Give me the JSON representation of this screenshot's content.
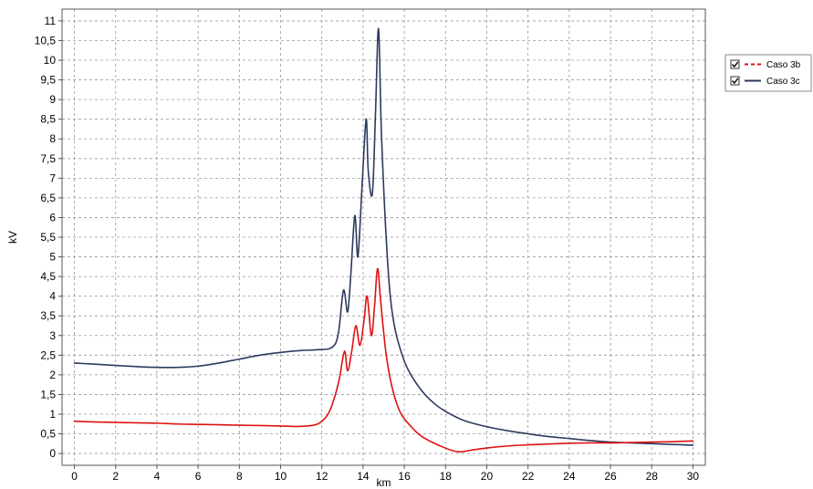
{
  "chart_data": {
    "type": "line",
    "title": "",
    "xlabel": "km",
    "ylabel": "kV",
    "xlim": [
      -0.6,
      30.6
    ],
    "ylim": [
      -0.3,
      11.3
    ],
    "xticks": [
      0,
      2,
      4,
      6,
      8,
      10,
      12,
      14,
      16,
      18,
      20,
      22,
      24,
      26,
      28,
      30
    ],
    "xtick_labels": [
      "0",
      "2",
      "4",
      "6",
      "8",
      "10",
      "12",
      "14",
      "16",
      "18",
      "20",
      "22",
      "24",
      "26",
      "28",
      "30"
    ],
    "yticks": [
      0,
      0.5,
      1,
      1.5,
      2,
      2.5,
      3,
      3.5,
      4,
      4.5,
      5,
      5.5,
      6,
      6.5,
      7,
      7.5,
      8,
      8.5,
      9,
      9.5,
      10,
      10.5,
      11
    ],
    "ytick_labels": [
      "0",
      "0,5",
      "1",
      "1,5",
      "2",
      "2,5",
      "3",
      "3,5",
      "4",
      "4,5",
      "5",
      "5,5",
      "6",
      "6,5",
      "7",
      "7,5",
      "8",
      "8,5",
      "9",
      "9,5",
      "10",
      "10,5",
      "11"
    ],
    "grid": true,
    "legend_position": "top-right, outside plot",
    "series": [
      {
        "name": "Caso 3b",
        "color": "#e01010",
        "legend_style": "dashed",
        "x": [
          0,
          1,
          2,
          3,
          4,
          5,
          6,
          7,
          8,
          9,
          10,
          11,
          11.8,
          12.3,
          12.6,
          12.85,
          13.1,
          13.25,
          13.45,
          13.65,
          13.85,
          14.05,
          14.2,
          14.4,
          14.55,
          14.7,
          14.85,
          15.1,
          15.4,
          15.8,
          16.3,
          16.8,
          17.3,
          17.8,
          18.3,
          18.7,
          19.2,
          20,
          21,
          22,
          23,
          24,
          25,
          26,
          27,
          28,
          29,
          30
        ],
        "y": [
          0.82,
          0.8,
          0.79,
          0.78,
          0.77,
          0.75,
          0.74,
          0.73,
          0.72,
          0.71,
          0.7,
          0.69,
          0.75,
          1.0,
          1.4,
          1.9,
          2.6,
          2.1,
          2.6,
          3.25,
          2.75,
          3.4,
          4.0,
          3.0,
          3.7,
          4.7,
          3.9,
          2.6,
          1.7,
          1.05,
          0.7,
          0.45,
          0.3,
          0.18,
          0.08,
          0.04,
          0.08,
          0.14,
          0.19,
          0.22,
          0.24,
          0.26,
          0.27,
          0.27,
          0.28,
          0.29,
          0.3,
          0.32
        ]
      },
      {
        "name": "Caso 3c",
        "color": "#2b3a5e",
        "legend_style": "solid",
        "x": [
          0,
          1,
          2,
          3,
          4,
          5,
          6,
          7,
          8,
          9,
          10,
          11,
          11.8,
          12.5,
          12.8,
          13.05,
          13.25,
          13.4,
          13.6,
          13.75,
          13.95,
          14.15,
          14.25,
          14.45,
          14.6,
          14.75,
          14.9,
          15.2,
          15.5,
          16,
          16.5,
          17,
          17.5,
          18,
          18.5,
          19,
          20,
          21,
          22,
          23,
          24,
          25,
          26,
          27,
          28,
          29,
          30
        ],
        "y": [
          2.3,
          2.27,
          2.24,
          2.21,
          2.19,
          2.19,
          2.22,
          2.3,
          2.4,
          2.5,
          2.57,
          2.62,
          2.64,
          2.7,
          3.05,
          4.15,
          3.6,
          4.5,
          6.05,
          5.0,
          6.8,
          8.5,
          7.2,
          6.6,
          8.6,
          10.8,
          8.0,
          4.8,
          3.3,
          2.35,
          1.85,
          1.5,
          1.25,
          1.07,
          0.93,
          0.82,
          0.68,
          0.58,
          0.5,
          0.43,
          0.38,
          0.33,
          0.29,
          0.27,
          0.25,
          0.23,
          0.21
        ]
      }
    ]
  }
}
